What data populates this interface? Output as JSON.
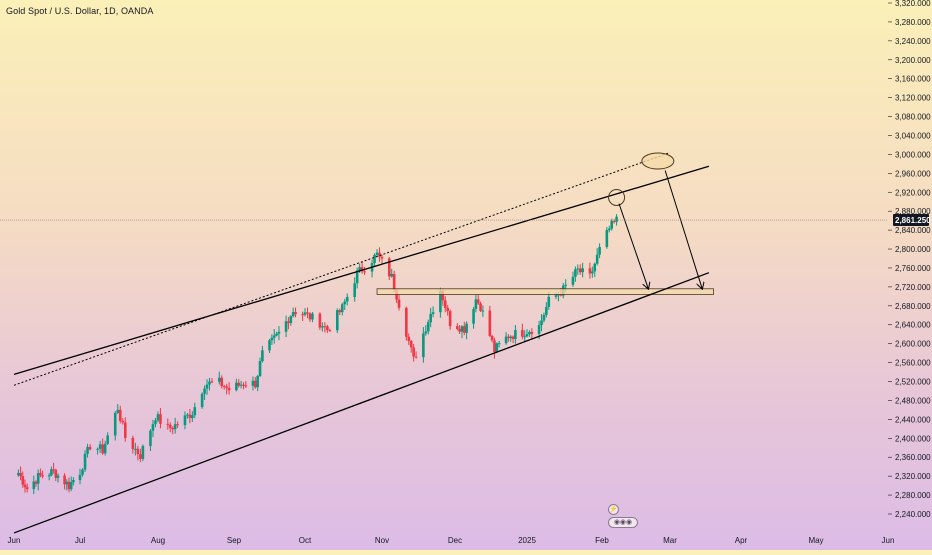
{
  "header": {
    "symbol_title": "Gold Spot / U.S. Dollar, 1D, OANDA"
  },
  "colors": {
    "candle_up": "#089981",
    "candle_down": "#f23645",
    "channel_line": "#000000",
    "price_tag_bg": "#131722",
    "zone_fill": "#f5d9a8",
    "zone_border": "#4a3a20",
    "current_price_line": "#787b86"
  },
  "icons": [
    "lightning-icon",
    "event-bubbles-icon"
  ],
  "chart_data": {
    "type": "candlestick",
    "title": "Gold Spot / U.S. Dollar, 1D, OANDA",
    "current_price": "2,861.250",
    "current_price_value": 2861.25,
    "y_axis": {
      "min": 2220,
      "max": 3320,
      "ticks": [
        "2,240.000",
        "2,280.000",
        "2,320.000",
        "2,360.000",
        "2,400.000",
        "2,440.000",
        "2,480.000",
        "2,520.000",
        "2,560.000",
        "2,600.000",
        "2,640.000",
        "2,680.000",
        "2,720.000",
        "2,760.000",
        "2,800.000",
        "2,840.000",
        "2,880.000",
        "2,920.000",
        "2,960.000",
        "3,000.000",
        "3,040.000",
        "3,080.000",
        "3,120.000",
        "3,160.000",
        "3,200.000",
        "3,240.000",
        "3,280.000",
        "3,320.000"
      ],
      "tick_values": [
        2240,
        2280,
        2320,
        2360,
        2400,
        2440,
        2480,
        2520,
        2560,
        2600,
        2640,
        2680,
        2720,
        2760,
        2800,
        2840,
        2880,
        2920,
        2960,
        3000,
        3040,
        3080,
        3120,
        3160,
        3200,
        3240,
        3280,
        3320
      ]
    },
    "x_axis": {
      "labels": [
        "Jun",
        "Jul",
        "Aug",
        "Sep",
        "Oct",
        "Nov",
        "Dec",
        "2025",
        "Feb",
        "Mar",
        "Apr",
        "May",
        "Jun"
      ],
      "dates": [
        "2024-06-01",
        "2024-07-01",
        "2024-08-01",
        "2024-09-01",
        "2024-10-01",
        "2024-11-01",
        "2024-12-01",
        "2025-01-01",
        "2025-02-01",
        "2025-03-01",
        "2025-04-01",
        "2025-05-01",
        "2025-06-01"
      ]
    },
    "series": [
      {
        "points": [
          [
            "2024-06-03",
            2327
          ],
          [
            "2024-06-07",
            2294
          ],
          [
            "2024-06-12",
            2318
          ],
          [
            "2024-06-19",
            2330
          ],
          [
            "2024-06-26",
            2300
          ],
          [
            "2024-07-01",
            2330
          ],
          [
            "2024-07-05",
            2385
          ],
          [
            "2024-07-10",
            2375
          ],
          [
            "2024-07-16",
            2465
          ],
          [
            "2024-07-19",
            2402
          ],
          [
            "2024-07-25",
            2364
          ],
          [
            "2024-07-31",
            2447
          ],
          [
            "2024-08-05",
            2420
          ],
          [
            "2024-08-09",
            2430
          ],
          [
            "2024-08-15",
            2455
          ],
          [
            "2024-08-20",
            2515
          ],
          [
            "2024-08-26",
            2518
          ],
          [
            "2024-08-30",
            2503
          ],
          [
            "2024-09-05",
            2517
          ],
          [
            "2024-09-10",
            2516
          ],
          [
            "2024-09-13",
            2578
          ],
          [
            "2024-09-20",
            2622
          ],
          [
            "2024-09-26",
            2670
          ],
          [
            "2024-10-01",
            2662
          ],
          [
            "2024-10-07",
            2645
          ],
          [
            "2024-10-10",
            2630
          ],
          [
            "2024-10-16",
            2675
          ],
          [
            "2024-10-22",
            2748
          ],
          [
            "2024-10-30",
            2788
          ],
          [
            "2024-11-05",
            2740
          ],
          [
            "2024-11-08",
            2685
          ],
          [
            "2024-11-14",
            2565
          ],
          [
            "2024-11-20",
            2650
          ],
          [
            "2024-11-25",
            2715
          ],
          [
            "2024-11-29",
            2645
          ],
          [
            "2024-12-05",
            2632
          ],
          [
            "2024-12-10",
            2694
          ],
          [
            "2024-12-12",
            2680
          ],
          [
            "2024-12-18",
            2586
          ],
          [
            "2024-12-24",
            2617
          ],
          [
            "2024-12-31",
            2625
          ],
          [
            "2025-01-06",
            2637
          ],
          [
            "2025-01-10",
            2690
          ],
          [
            "2025-01-16",
            2714
          ],
          [
            "2025-01-22",
            2755
          ],
          [
            "2025-01-27",
            2740
          ],
          [
            "2025-01-31",
            2798
          ],
          [
            "2025-02-04",
            2842
          ],
          [
            "2025-02-07",
            2861
          ]
        ]
      }
    ],
    "annotations": {
      "channel_upper": [
        [
          "2024-06-01",
          2535
        ],
        [
          "2025-03-18",
          2975
        ]
      ],
      "channel_lower": [
        [
          "2024-06-01",
          2200
        ],
        [
          "2025-03-18",
          2750
        ]
      ],
      "channel_mid_dotted": [
        [
          "2024-06-01",
          2512
        ],
        [
          "2025-03-01",
          3004
        ]
      ],
      "support_zone": {
        "from": "2024-10-30",
        "to": "2025-03-20",
        "low": 2704,
        "high": 2716
      },
      "target_ellipses": [
        [
          "2025-02-07",
          2909
        ],
        [
          "2025-02-24",
          2986
        ]
      ],
      "arrows": [
        {
          "from": [
            "2025-02-08",
            2896
          ],
          "to": [
            "2025-02-20",
            2717
          ]
        },
        {
          "from": [
            "2025-02-27",
            2966
          ],
          "to": [
            "2025-03-15",
            2717
          ]
        }
      ]
    },
    "grid": false,
    "legend": "none"
  }
}
